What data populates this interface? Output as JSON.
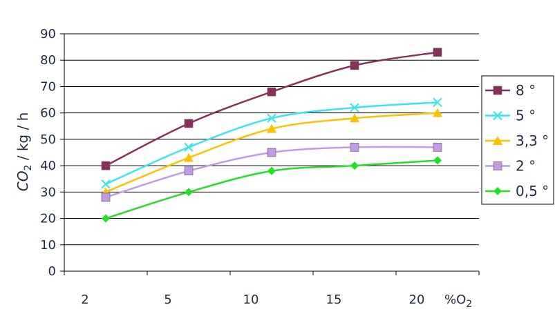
{
  "chart_data": {
    "type": "line",
    "title": "",
    "ylabel_main": "CO",
    "ylabel_sub": "2",
    "ylabel_rest": " / kg / h",
    "xlabel_main": "%O",
    "xlabel_sub": "2",
    "categories": [
      "2",
      "5",
      "10",
      "15",
      "20"
    ],
    "ylim": [
      0,
      90
    ],
    "yticks": [
      0,
      10,
      20,
      30,
      40,
      50,
      60,
      70,
      80,
      90
    ],
    "grid": "horizontal",
    "legend_position": "right",
    "series": [
      {
        "name": "8 °",
        "color": "#8b2e5c",
        "marker": "square",
        "values": [
          40,
          56,
          68,
          78,
          83
        ]
      },
      {
        "name": "5 °",
        "color": "#33e6f0",
        "marker": "x",
        "values": [
          33,
          47,
          58,
          62,
          64
        ]
      },
      {
        "name": "3,3 °",
        "color": "#ffc000",
        "marker": "triangle",
        "values": [
          30,
          43,
          54,
          58,
          60
        ]
      },
      {
        "name": "2 °",
        "color": "#c39ae8",
        "marker": "square",
        "values": [
          28,
          38,
          45,
          47,
          47
        ]
      },
      {
        "name": "0,5 °",
        "color": "#22e022",
        "marker": "diamond",
        "values": [
          20,
          30,
          38,
          40,
          42
        ]
      }
    ]
  }
}
